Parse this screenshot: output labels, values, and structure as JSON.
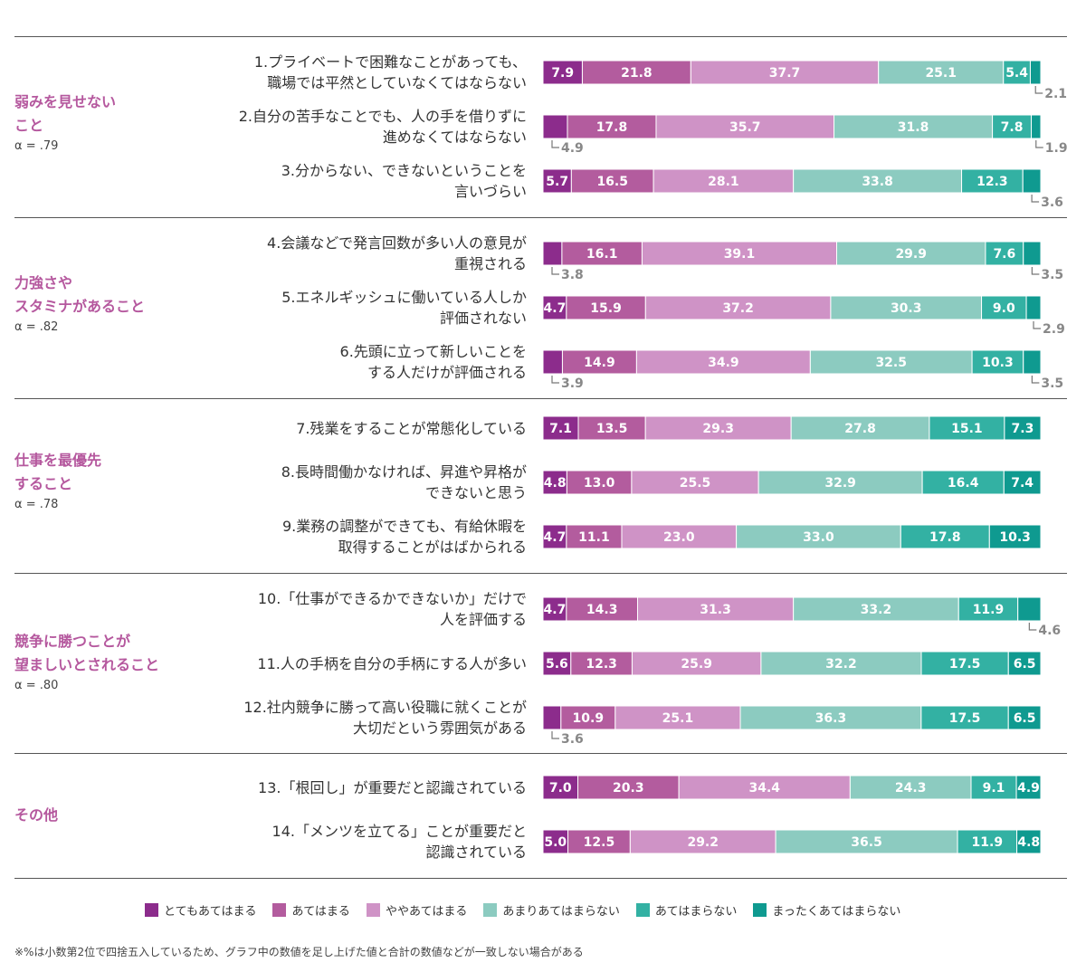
{
  "chart_data": {
    "type": "bar",
    "orientation": "horizontal-stacked-100",
    "legend": [
      "とてもあてはまる",
      "あてはまる",
      "ややあてはまる",
      "あまりあてはまらない",
      "あてはまらない",
      "まったくあてはまらない"
    ],
    "legend_placement": "bottom",
    "colors": [
      "#8c2c8c",
      "#b35c9e",
      "#cf93c6",
      "#8ccbc0",
      "#33b1a3",
      "#0f9a90"
    ],
    "groups": [
      {
        "title": "弱みを見せない\nこと",
        "alpha": "α = .79",
        "items": [
          0,
          1,
          2
        ]
      },
      {
        "title": "力強さや\nスタミナがあること",
        "alpha": "α = .82",
        "items": [
          3,
          4,
          5
        ]
      },
      {
        "title": "仕事を最優先\nすること",
        "alpha": "α = .78",
        "items": [
          6,
          7,
          8
        ]
      },
      {
        "title": "競争に勝つことが\n望ましいとされること",
        "alpha": "α = .80",
        "items": [
          9,
          10,
          11
        ]
      },
      {
        "title": "その他",
        "alpha": "",
        "items": [
          12,
          13
        ]
      }
    ],
    "items": [
      {
        "label": "1.プライベートで困難なことがあっても、\n職場では平然としていなくてはならない",
        "values": [
          7.9,
          21.8,
          37.7,
          25.1,
          5.4,
          2.1
        ],
        "outside": [
          5
        ]
      },
      {
        "label": "2.自分の苦手なことでも、人の手を借りずに\n進めなくてはならない",
        "values": [
          4.9,
          17.8,
          35.7,
          31.8,
          7.8,
          1.9
        ],
        "outside": [
          0,
          5
        ]
      },
      {
        "label": "3.分からない、できないということを\n言いづらい",
        "values": [
          5.7,
          16.5,
          28.1,
          33.8,
          12.3,
          3.6
        ],
        "outside": [
          5
        ]
      },
      {
        "label": "4.会議などで発言回数が多い人の意見が\n重視される",
        "values": [
          3.8,
          16.1,
          39.1,
          29.9,
          7.6,
          3.5
        ],
        "outside": [
          0,
          5
        ]
      },
      {
        "label": "5.エネルギッシュに働いている人しか\n評価されない",
        "values": [
          4.7,
          15.9,
          37.2,
          30.3,
          9.0,
          2.9
        ],
        "outside": [
          5
        ]
      },
      {
        "label": "6.先頭に立って新しいことを\nする人だけが評価される",
        "values": [
          3.9,
          14.9,
          34.9,
          32.5,
          10.3,
          3.5
        ],
        "outside": [
          0,
          5
        ]
      },
      {
        "label": "7.残業をすることが常態化している",
        "values": [
          7.1,
          13.5,
          29.3,
          27.8,
          15.1,
          7.3
        ],
        "outside": []
      },
      {
        "label": "8.長時間働かなければ、昇進や昇格が\nできないと思う",
        "values": [
          4.8,
          13.0,
          25.5,
          32.9,
          16.4,
          7.4
        ],
        "outside": []
      },
      {
        "label": "9.業務の調整ができても、有給休暇を\n取得することがはばかられる",
        "values": [
          4.7,
          11.1,
          23.0,
          33.0,
          17.8,
          10.3
        ],
        "outside": []
      },
      {
        "label": "10.「仕事ができるかできないか」だけで\n人を評価する",
        "values": [
          4.7,
          14.3,
          31.3,
          33.2,
          11.9,
          4.6
        ],
        "outside": [
          5
        ]
      },
      {
        "label": "11.人の手柄を自分の手柄にする人が多い",
        "values": [
          5.6,
          12.3,
          25.9,
          32.2,
          17.5,
          6.5
        ],
        "outside": []
      },
      {
        "label": "12.社内競争に勝って高い役職に就くことが\n大切だという雰囲気がある",
        "values": [
          3.6,
          10.9,
          25.1,
          36.3,
          17.5,
          6.5
        ],
        "outside": [
          0
        ]
      },
      {
        "label": "13.「根回し」が重要だと認識されている",
        "values": [
          7.0,
          20.3,
          34.4,
          24.3,
          9.1,
          4.9
        ],
        "outside": []
      },
      {
        "label": "14.「メンツを立てる」ことが重要だと\n認識されている",
        "values": [
          5.0,
          12.5,
          29.2,
          36.5,
          11.9,
          4.8
        ],
        "outside": []
      }
    ],
    "note": "※%は小数第2位で四捨五入しているため、グラフ中の数値を足し上げた値と合計の数値などが一致しない場合がある"
  }
}
